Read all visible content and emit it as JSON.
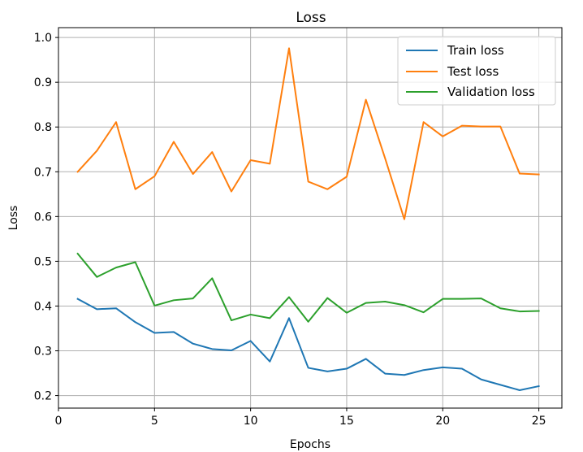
{
  "chart_data": {
    "type": "line",
    "title": "Loss",
    "xlabel": "Epochs",
    "ylabel": "Loss",
    "xlim": [
      0,
      26.2
    ],
    "ylim": [
      0.172,
      1.022
    ],
    "xticks": [
      0,
      5,
      10,
      15,
      20,
      25
    ],
    "yticks": [
      0.2,
      0.3,
      0.4,
      0.5,
      0.6,
      0.7,
      0.8,
      0.9,
      1.0
    ],
    "xtick_labels": [
      "0",
      "5",
      "10",
      "15",
      "20",
      "25"
    ],
    "ytick_labels": [
      "0.2",
      "0.3",
      "0.4",
      "0.5",
      "0.6",
      "0.7",
      "0.8",
      "0.9",
      "1.0"
    ],
    "grid": true,
    "legend_position": "top-right",
    "x": [
      1,
      2,
      3,
      4,
      5,
      6,
      7,
      8,
      9,
      10,
      11,
      12,
      13,
      14,
      15,
      16,
      17,
      18,
      19,
      20,
      21,
      22,
      23,
      24,
      25
    ],
    "series": [
      {
        "name": "Train loss",
        "color": "#1f77b4",
        "values": [
          0.416,
          0.393,
          0.395,
          0.364,
          0.34,
          0.342,
          0.316,
          0.304,
          0.301,
          0.322,
          0.276,
          0.373,
          0.262,
          0.254,
          0.26,
          0.282,
          0.249,
          0.246,
          0.257,
          0.263,
          0.26,
          0.236,
          0.224,
          0.212,
          0.221
        ]
      },
      {
        "name": "Test loss",
        "color": "#ff7f0e",
        "values": [
          0.7,
          0.747,
          0.811,
          0.661,
          0.69,
          0.767,
          0.695,
          0.744,
          0.656,
          0.726,
          0.718,
          0.976,
          0.678,
          0.661,
          0.689,
          0.861,
          0.73,
          0.594,
          0.811,
          0.779,
          0.803,
          0.801,
          0.801,
          0.696,
          0.694
        ]
      },
      {
        "name": "Validation loss",
        "color": "#2ca02c",
        "values": [
          0.517,
          0.465,
          0.486,
          0.498,
          0.401,
          0.413,
          0.417,
          0.462,
          0.368,
          0.381,
          0.373,
          0.42,
          0.365,
          0.418,
          0.385,
          0.407,
          0.41,
          0.402,
          0.386,
          0.416,
          0.416,
          0.417,
          0.395,
          0.388,
          0.389
        ]
      }
    ]
  }
}
